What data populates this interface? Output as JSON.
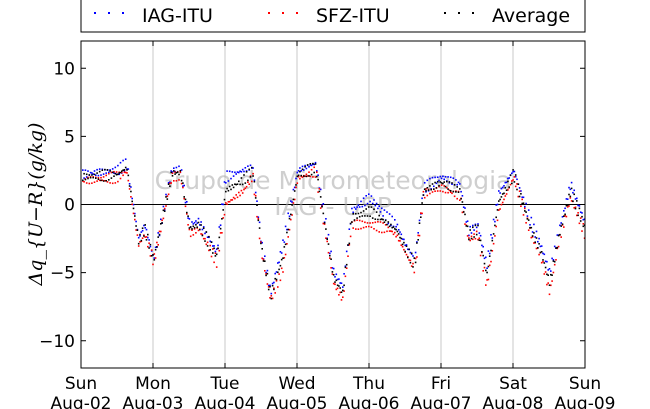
{
  "chart_data": {
    "type": "scatter",
    "ylabel": "Δq_{U−R}(g/kg)",
    "ylim": [
      -12,
      12
    ],
    "yticks": [
      10,
      5,
      0,
      -5,
      -10
    ],
    "xlim": [
      "2015-08-02",
      "2015-08-09"
    ],
    "grid": "vertical",
    "legend_placement": "top",
    "watermark": [
      "Grupo de Micrometeorologia",
      "IAG - USP"
    ],
    "x_ticks": [
      {
        "day": "Sun",
        "date": "Aug-02"
      },
      {
        "day": "Mon",
        "date": "Aug-03"
      },
      {
        "day": "Tue",
        "date": "Aug-04"
      },
      {
        "day": "Wed",
        "date": "Aug-05"
      },
      {
        "day": "Thu",
        "date": "Aug-06"
      },
      {
        "day": "Fri",
        "date": "Aug-07"
      },
      {
        "day": "Sat",
        "date": "Aug-08"
      },
      {
        "day": "Sun",
        "date": "Aug-09"
      }
    ],
    "x": [
      "2015-08-02 00:00",
      "2015-08-02 12:00",
      "2015-08-02 15:00",
      "2015-08-02 19:00",
      "2015-08-02 21:00",
      "2015-08-03 00:00",
      "2015-08-03 06:00",
      "2015-08-03 09:00",
      "2015-08-03 12:00",
      "2015-08-03 15:00",
      "2015-08-03 21:00",
      "2015-08-04 00:00",
      "2015-08-04 06:00",
      "2015-08-04 09:00",
      "2015-08-04 12:00",
      "2015-08-04 15:00",
      "2015-08-04 19:00",
      "2015-08-05 00:00",
      "2015-08-05 06:00",
      "2015-08-05 09:00",
      "2015-08-05 12:00",
      "2015-08-05 15:00",
      "2015-08-05 18:00",
      "2015-08-06 00:00",
      "2015-08-06 06:00",
      "2015-08-06 09:00",
      "2015-08-06 12:00",
      "2015-08-06 15:00",
      "2015-08-06 18:00",
      "2015-08-07 00:00",
      "2015-08-07 06:00",
      "2015-08-07 09:00",
      "2015-08-07 12:00",
      "2015-08-07 15:00",
      "2015-08-07 19:00",
      "2015-08-08 00:00",
      "2015-08-08 06:00",
      "2015-08-08 09:00",
      "2015-08-08 12:00",
      "2015-08-08 15:00",
      "2015-08-08 19:00",
      "2015-08-09 00:00"
    ],
    "series": [
      {
        "name": "IAG-ITU",
        "color": "#0000ff",
        "values": [
          2.2,
          2.5,
          3.0,
          -2.5,
          -1.5,
          -4.0,
          2.5,
          2.6,
          -1.5,
          -1.2,
          -3.5,
          2.0,
          2.5,
          2.8,
          -3.0,
          -6.5,
          -3.0,
          2.5,
          3.0,
          -1.0,
          -5.0,
          -6.0,
          -0.5,
          0.5,
          -1.0,
          -1.5,
          -3.0,
          -4.0,
          1.2,
          2.0,
          1.5,
          -2.0,
          -1.5,
          -4.5,
          0.8,
          2.5,
          -1.5,
          -3.0,
          -5.0,
          -2.0,
          1.5,
          -1.5
        ]
      },
      {
        "name": "SFZ-ITU",
        "color": "#ff0000",
        "values": [
          1.7,
          2.0,
          2.4,
          -3.0,
          -2.2,
          -4.2,
          2.0,
          2.1,
          -2.2,
          -1.8,
          -4.2,
          0.0,
          1.0,
          2.1,
          -3.6,
          -7.0,
          -4.8,
          1.9,
          2.4,
          -1.8,
          -5.8,
          -7.0,
          -1.5,
          -1.5,
          -1.8,
          -2.3,
          -3.6,
          -4.8,
          0.8,
          1.2,
          0.6,
          -2.6,
          -2.2,
          -6.0,
          -0.5,
          2.0,
          -2.4,
          -3.8,
          -6.5,
          -2.8,
          0.5,
          -2.3
        ]
      },
      {
        "name": "Average",
        "color": "#000000",
        "values": [
          2.0,
          2.2,
          2.7,
          -2.7,
          -1.8,
          -4.1,
          2.3,
          2.3,
          -1.8,
          -1.5,
          -3.8,
          1.0,
          1.8,
          2.5,
          -3.3,
          -6.7,
          -3.9,
          2.2,
          2.7,
          -1.4,
          -5.4,
          -6.5,
          -1.0,
          -0.5,
          -1.4,
          -1.9,
          -3.3,
          -4.4,
          1.0,
          1.6,
          1.0,
          -2.3,
          -1.8,
          -5.2,
          0.2,
          2.2,
          -2.0,
          -3.4,
          -5.8,
          -2.4,
          1.0,
          -1.9
        ]
      }
    ]
  }
}
